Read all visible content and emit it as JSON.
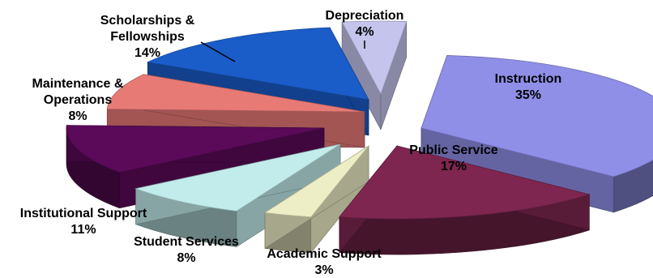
{
  "chart_data": {
    "type": "pie",
    "title": "",
    "slices": [
      {
        "name_lines": [
          "Instruction"
        ],
        "value": 35,
        "value_label": "35%",
        "color": "#8f8fe8"
      },
      {
        "name_lines": [
          "Public Service"
        ],
        "value": 17,
        "value_label": "17%",
        "color": "#7e2650"
      },
      {
        "name_lines": [
          "Academic Support"
        ],
        "value": 3,
        "value_label": "3%",
        "color": "#eeeec6"
      },
      {
        "name_lines": [
          "Student Services"
        ],
        "value": 8,
        "value_label": "8%",
        "color": "#c2ecec"
      },
      {
        "name_lines": [
          "Institutional Support"
        ],
        "value": 11,
        "value_label": "11%",
        "color": "#5a0a58"
      },
      {
        "name_lines": [
          "Maintenance &",
          "Operations"
        ],
        "value": 8,
        "value_label": "8%",
        "color": "#e87a76"
      },
      {
        "name_lines": [
          "Scholarships &",
          "Fellowships"
        ],
        "value": 14,
        "value_label": "14%",
        "color": "#1a5cc8"
      },
      {
        "name_lines": [
          "Depreciation"
        ],
        "value": 4,
        "value_label": "4%",
        "color": "#c4c4ec"
      }
    ]
  }
}
